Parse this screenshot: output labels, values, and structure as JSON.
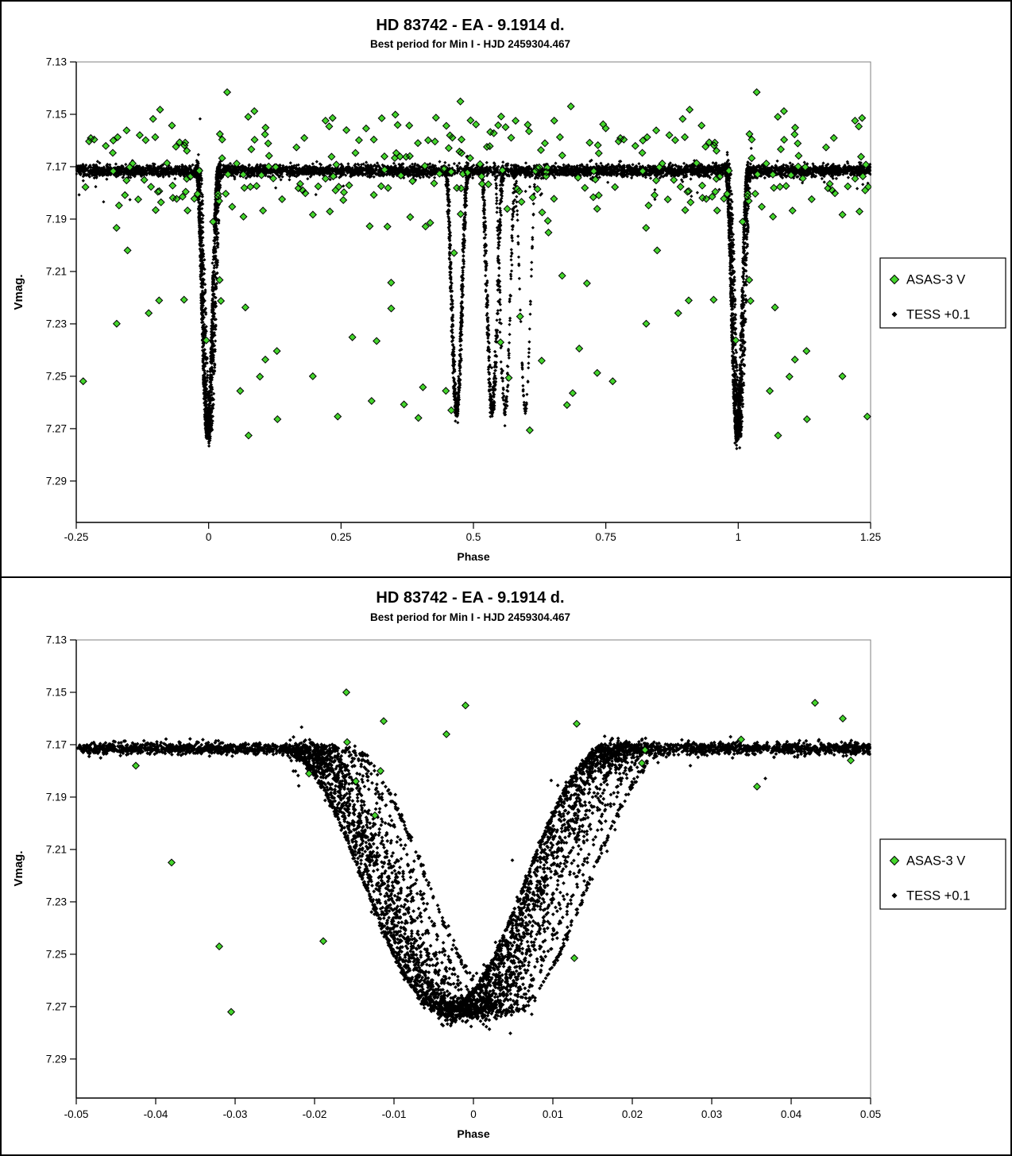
{
  "colors": {
    "asas_fill": "#44d62c",
    "asas_stroke": "#000000",
    "tess": "#000000",
    "axis": "#000000",
    "plot_border": "#808080",
    "background": "#ffffff"
  },
  "legend": {
    "items": [
      {
        "label": "ASAS-3 V",
        "marker": "green-diamond"
      },
      {
        "label": "TESS +0.1",
        "marker": "black-diamond"
      }
    ]
  },
  "charts": [
    {
      "title": "HD 83742  - EA - 9.1914 d.",
      "subtitle": "Best period for Min I - HJD 2459304.467",
      "xlabel": "Phase",
      "ylabel": "Vmag.",
      "xlim": [
        -0.25,
        1.25
      ],
      "ylim_mag": [
        7.13,
        7.3058
      ],
      "xticks": [
        {
          "v": -0.25,
          "label": "-0.25"
        },
        {
          "v": 0,
          "label": "0"
        },
        {
          "v": 0.25,
          "label": "0.25"
        },
        {
          "v": 0.5,
          "label": "0.5"
        },
        {
          "v": 0.75,
          "label": "0.75"
        },
        {
          "v": 1,
          "label": "1"
        },
        {
          "v": 1.25,
          "label": "1.25"
        }
      ],
      "yticks": [
        {
          "v": 7.13,
          "label": "7.13"
        },
        {
          "v": 7.15,
          "label": "7.15"
        },
        {
          "v": 7.17,
          "label": "7.17"
        },
        {
          "v": 7.19,
          "label": "7.19"
        },
        {
          "v": 7.21,
          "label": "7.21"
        },
        {
          "v": 7.23,
          "label": "7.23"
        },
        {
          "v": 7.25,
          "label": "7.25"
        },
        {
          "v": 7.27,
          "label": "7.27"
        },
        {
          "v": 7.29,
          "label": "7.29"
        }
      ]
    },
    {
      "title": "HD 83742  - EA - 9.1914 d.",
      "subtitle": "Best period for Min I - HJD 2459304.467",
      "xlabel": "Phase",
      "ylabel": "Vmag.",
      "xlim": [
        -0.05,
        0.05
      ],
      "ylim_mag": [
        7.13,
        7.3049
      ],
      "xticks": [
        {
          "v": -0.05,
          "label": "-0.05"
        },
        {
          "v": -0.04,
          "label": "-0.04"
        },
        {
          "v": -0.03,
          "label": "-0.03"
        },
        {
          "v": -0.02,
          "label": "-0.02"
        },
        {
          "v": -0.01,
          "label": "-0.01"
        },
        {
          "v": 0,
          "label": "0"
        },
        {
          "v": 0.01,
          "label": "0.01"
        },
        {
          "v": 0.02,
          "label": "0.02"
        },
        {
          "v": 0.03,
          "label": "0.03"
        },
        {
          "v": 0.04,
          "label": "0.04"
        },
        {
          "v": 0.05,
          "label": "0.05"
        }
      ],
      "yticks": [
        {
          "v": 7.13,
          "label": "7.13"
        },
        {
          "v": 7.15,
          "label": "7.15"
        },
        {
          "v": 7.17,
          "label": "7.17"
        },
        {
          "v": 7.19,
          "label": "7.19"
        },
        {
          "v": 7.21,
          "label": "7.21"
        },
        {
          "v": 7.23,
          "label": "7.23"
        },
        {
          "v": 7.25,
          "label": "7.25"
        },
        {
          "v": 7.27,
          "label": "7.27"
        },
        {
          "v": 7.29,
          "label": "7.29"
        }
      ]
    }
  ],
  "chart_data": [
    {
      "type": "scatter",
      "title": "HD 83742  - EA - 9.1914 d.",
      "subtitle": "Best period for Min I - HJD 2459304.467",
      "xlabel": "Phase",
      "ylabel": "Vmag.",
      "xlim": [
        -0.25,
        1.25
      ],
      "ylim": [
        7.13,
        7.3058
      ],
      "y_axis_direction": "magnitude increases downward",
      "grid": false,
      "legend_position": "right-outside",
      "key_values": {
        "out_of_eclipse_mag": 7.1715,
        "primary_min_mag": 7.272,
        "secondary_min_mag": 7.263,
        "primary_eclipse_phases": [
          0,
          1
        ],
        "secondary_eclipse_phases": [
          0.4685,
          0.536,
          0.5595,
          0.598
        ],
        "phase_fold_period_days": 9.1914
      },
      "series": [
        {
          "name": "ASAS-3 V",
          "marker": "diamond",
          "marker_size": 4.3,
          "color": "#44d62c",
          "generator": {
            "n": 240,
            "phase_range": [
              0,
              1
            ],
            "duplicate_at_phase_offsets": [
              -1,
              1
            ],
            "mag_clusters": [
              {
                "frac": 0.58,
                "mean": 7.1775,
                "sigma": 0.0075
              },
              {
                "frac": 0.26,
                "mean": 7.158,
                "sigma": 0.006
              },
              {
                "frac": 0.16,
                "dist": "uniform",
                "min": 7.19,
                "max": 7.275
              }
            ],
            "mag_clamp": [
              7.141,
              7.276
            ]
          }
        },
        {
          "name": "TESS +0.1",
          "marker": "diamond",
          "marker_size": 2.1,
          "color": "#000000",
          "model": {
            "baseline_mag": 7.1715,
            "band_sigma": 0.0011,
            "primary_eclipse": {
              "depth": 0.1005,
              "halfwidth": 0.0205,
              "profile": "raised-cosine"
            },
            "secondary_eclipse": {
              "depth": 0.0915,
              "halfwidth": 0.021,
              "profile": "raised-cosine"
            },
            "epochs": [
              {
                "primary_min_phase": -0.0036,
                "secondary_min_phase": 0.4685,
                "weight": 3.5,
                "sigma": 0.0008
              },
              {
                "primary_min_phase": -0.0028,
                "secondary_min_phase": 0.47,
                "weight": 2.5,
                "sigma": 0.0018
              },
              {
                "primary_min_phase": -0.0019,
                "secondary_min_phase": 0.4672,
                "weight": 2.5,
                "sigma": 0.0024
              },
              {
                "primary_min_phase": -0.0011,
                "secondary_min_phase": 0.5355,
                "weight": 2.0,
                "sigma": 0.0014
              },
              {
                "primary_min_phase": -0.0003,
                "secondary_min_phase": 0.534,
                "weight": 1.5,
                "sigma": 0.0022
              },
              {
                "primary_min_phase": 0.0006,
                "secondary_min_phase": 0.537,
                "weight": 1.5,
                "sigma": 0.0012
              },
              {
                "primary_min_phase": 0.0017,
                "secondary_min_phase": 0.559,
                "weight": 1.0,
                "sigma": 0.0026
              },
              {
                "primary_min_phase": 0.0029,
                "secondary_min_phase": 0.5605,
                "weight": 1.0,
                "sigma": 0.0018
              },
              {
                "primary_min_phase": 0.0044,
                "secondary_min_phase": 0.598,
                "weight": 1.2,
                "sigma": 0.0009
              }
            ]
          },
          "generator": {
            "band_points": 5200,
            "primary_points": 2600,
            "secondary_points": 1150,
            "primary_centers": [
              0,
              1
            ],
            "outlier_frac": 0.04,
            "outlier_sigma": 0.006
          }
        }
      ]
    },
    {
      "type": "scatter",
      "title": "HD 83742  - EA - 9.1914 d.",
      "subtitle": "Best period for Min I - HJD 2459304.467",
      "xlabel": "Phase",
      "ylabel": "Vmag.",
      "xlim": [
        -0.05,
        0.05
      ],
      "ylim": [
        7.13,
        7.3049
      ],
      "y_axis_direction": "magnitude increases downward",
      "grid": false,
      "legend_position": "right-outside",
      "key_values": {
        "out_of_eclipse_mag": 7.1715,
        "primary_min_mag": 7.272,
        "primary_minima_phase_spread": [
          -0.0036,
          0.0044
        ],
        "ingress_start_phase": -0.026,
        "egress_end_phase": 0.021
      },
      "series": [
        {
          "name": "ASAS-3 V",
          "marker": "diamond",
          "marker_size": 4.3,
          "color": "#44d62c",
          "points": [
            [
              -0.0425,
              7.178
            ],
            [
              -0.038,
              7.215
            ],
            [
              -0.032,
              7.247
            ],
            [
              -0.0305,
              7.272
            ],
            [
              -0.0207,
              7.181
            ],
            [
              -0.0189,
              7.245
            ],
            [
              -0.016,
              7.15
            ],
            [
              -0.0159,
              7.169
            ],
            [
              -0.0148,
              7.184
            ],
            [
              -0.0124,
              7.197
            ],
            [
              -0.0117,
              7.18
            ],
            [
              -0.0113,
              7.161
            ],
            [
              -0.0034,
              7.166
            ],
            [
              -0.001,
              7.155
            ],
            [
              0.0127,
              7.2515
            ],
            [
              0.013,
              7.162
            ],
            [
              0.0212,
              7.177
            ],
            [
              0.0216,
              7.172
            ],
            [
              0.0337,
              7.168
            ],
            [
              0.0357,
              7.186
            ],
            [
              0.043,
              7.154
            ],
            [
              0.0465,
              7.16
            ],
            [
              0.0475,
              7.176
            ]
          ]
        },
        {
          "name": "TESS +0.1",
          "marker": "diamond",
          "marker_size": 2.4,
          "color": "#000000",
          "model": {
            "baseline_mag": 7.1715,
            "band_sigma": 0.0011,
            "primary_eclipse": {
              "depth": 0.1005,
              "halfwidth": 0.0205,
              "profile": "raised-cosine"
            },
            "secondary_eclipse": {
              "depth": 0.0915,
              "halfwidth": 0.021,
              "profile": "raised-cosine"
            },
            "epochs": [
              {
                "primary_min_phase": -0.0036,
                "secondary_min_phase": 0.4685,
                "weight": 3.5,
                "sigma": 0.0008
              },
              {
                "primary_min_phase": -0.0028,
                "secondary_min_phase": 0.47,
                "weight": 2.5,
                "sigma": 0.0018
              },
              {
                "primary_min_phase": -0.0019,
                "secondary_min_phase": 0.4672,
                "weight": 2.5,
                "sigma": 0.0024
              },
              {
                "primary_min_phase": -0.0011,
                "secondary_min_phase": 0.5355,
                "weight": 2.0,
                "sigma": 0.0014
              },
              {
                "primary_min_phase": -0.0003,
                "secondary_min_phase": 0.534,
                "weight": 1.5,
                "sigma": 0.0022
              },
              {
                "primary_min_phase": 0.0006,
                "secondary_min_phase": 0.537,
                "weight": 1.5,
                "sigma": 0.0012
              },
              {
                "primary_min_phase": 0.0017,
                "secondary_min_phase": 0.559,
                "weight": 1.0,
                "sigma": 0.0026
              },
              {
                "primary_min_phase": 0.0029,
                "secondary_min_phase": 0.5605,
                "weight": 1.0,
                "sigma": 0.0018
              },
              {
                "primary_min_phase": 0.0044,
                "secondary_min_phase": 0.598,
                "weight": 1.2,
                "sigma": 0.0009
              }
            ]
          },
          "generator": {
            "band_points": 3000,
            "primary_points": 3400,
            "secondary_points": 0,
            "primary_centers": [
              0
            ],
            "outlier_frac": 0.05,
            "outlier_sigma": 0.006
          }
        }
      ]
    }
  ]
}
